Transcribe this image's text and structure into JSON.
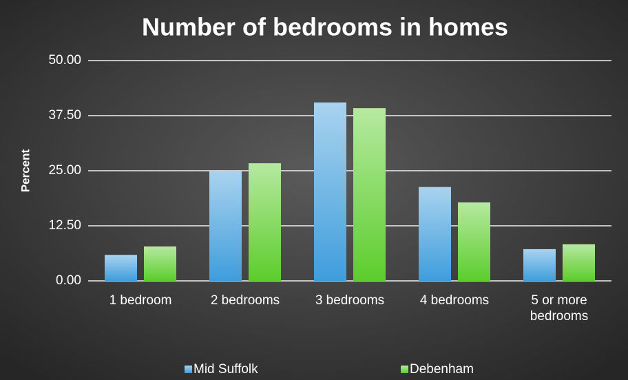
{
  "chart_data": {
    "type": "bar",
    "title": "Number of bedrooms in homes",
    "y_label": "Percent",
    "categories": [
      "1 bedroom",
      "2 bedrooms",
      "3 bedrooms",
      "4 bedrooms",
      "5 or more bedrooms"
    ],
    "series": [
      {
        "name": "Mid Suffolk",
        "color": "#3f9ddc",
        "values": [
          5.9,
          25.0,
          40.5,
          21.3,
          7.2
        ]
      },
      {
        "name": "Debenham",
        "color": "#5ccd2c",
        "values": [
          7.8,
          26.7,
          39.2,
          17.8,
          8.3
        ]
      }
    ],
    "ylim": [
      0,
      50
    ],
    "yticks": [
      {
        "value": 0,
        "label": "0.00"
      },
      {
        "value": 12.5,
        "label": "12.50"
      },
      {
        "value": 25,
        "label": "25.00"
      },
      {
        "value": 37.5,
        "label": "37.50"
      },
      {
        "value": 50,
        "label": "50.00"
      }
    ],
    "grid": true,
    "legend": "bottom"
  }
}
